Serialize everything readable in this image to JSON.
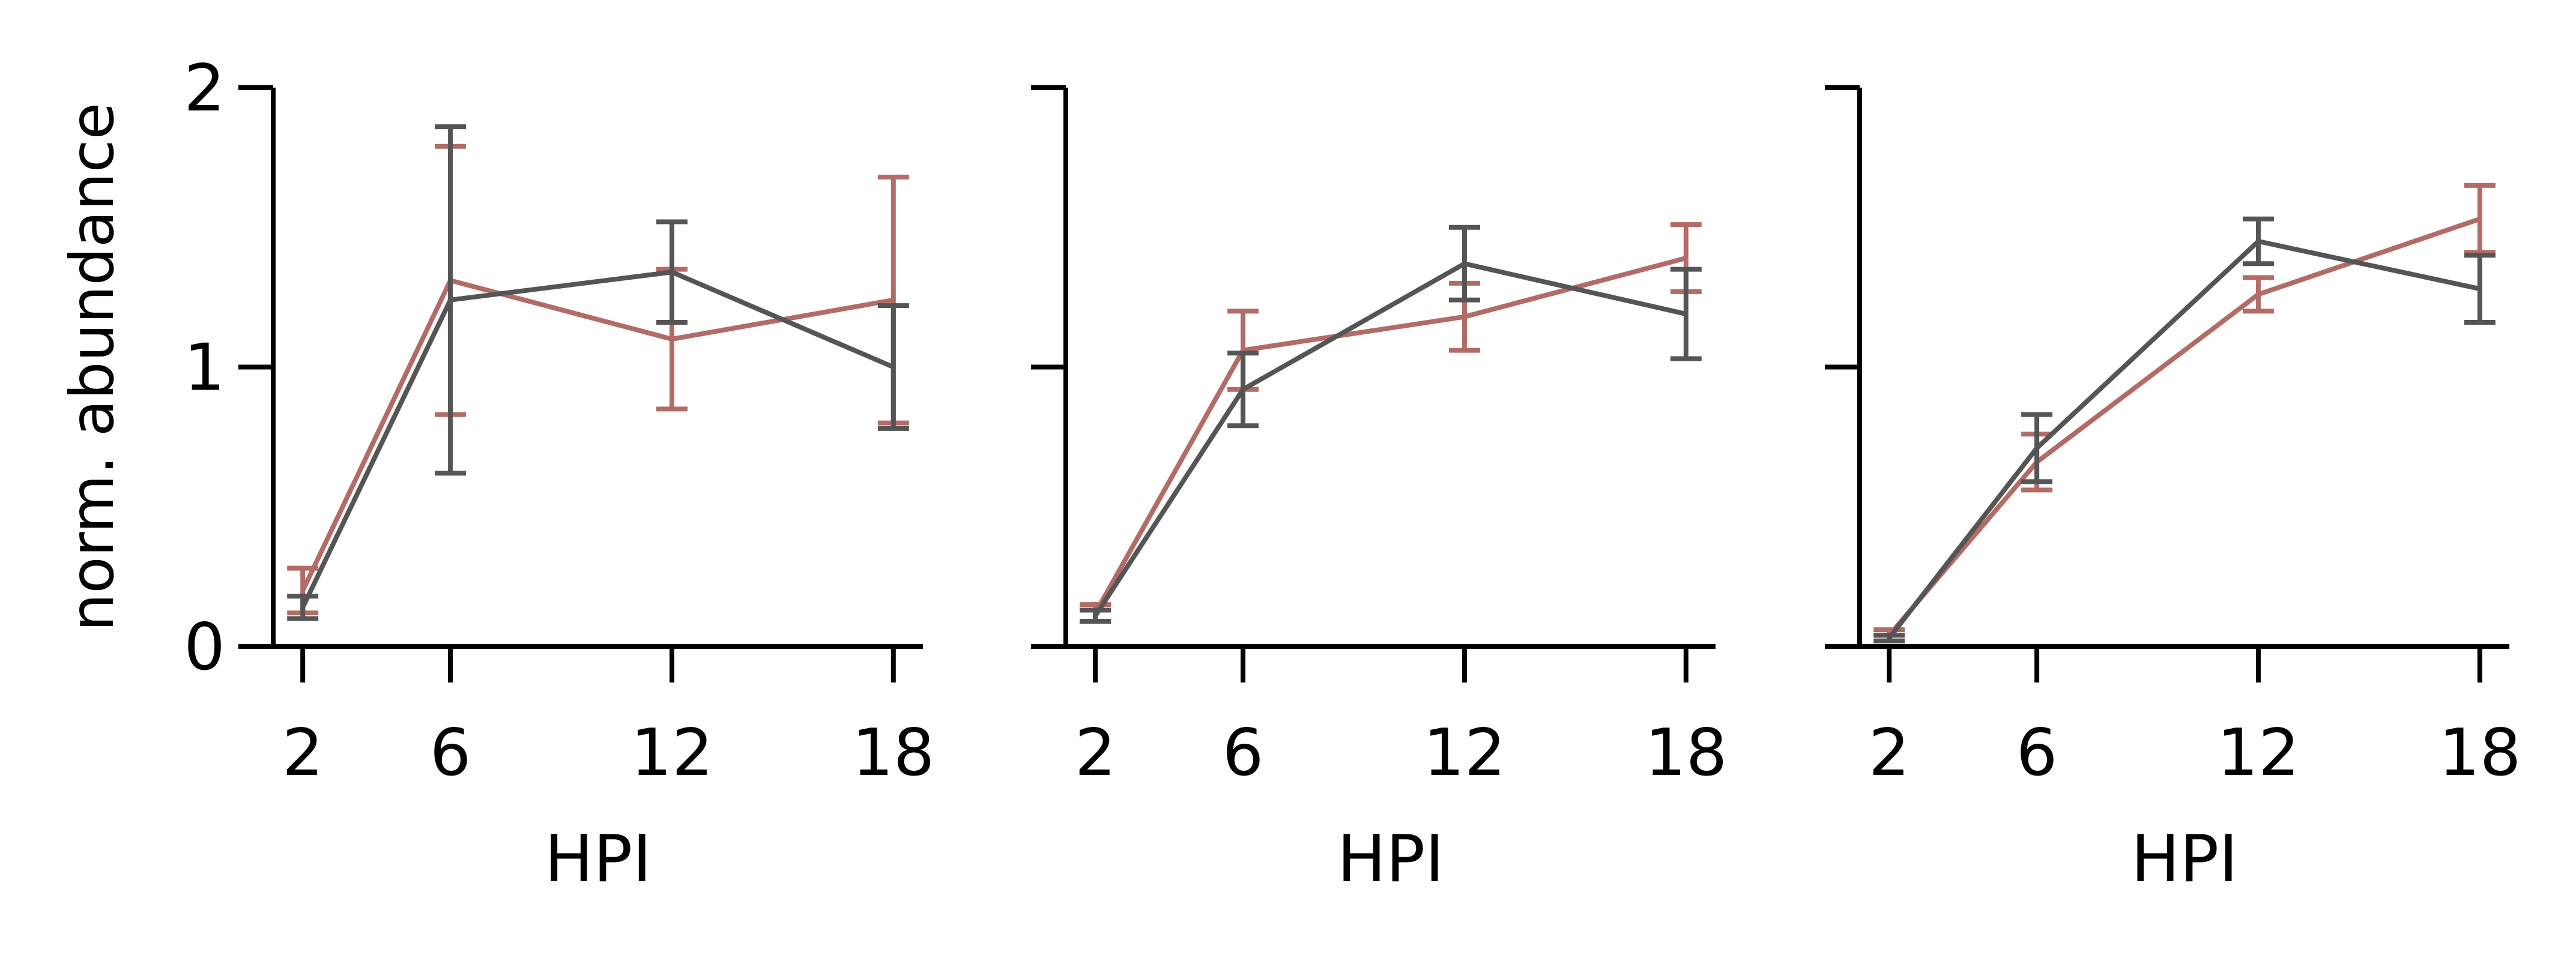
{
  "colors": {
    "series_a": "#b36b66",
    "series_b": "#555555",
    "axis": "#000000"
  },
  "chart_data": [
    {
      "type": "line",
      "panel": 1,
      "xlabel": "HPI",
      "ylabel": "norm. abundance",
      "xticks": [
        2,
        6,
        12,
        18
      ],
      "yticks": [
        0,
        1,
        2
      ],
      "ylim": [
        0,
        2
      ],
      "xlim": [
        1.2,
        18.8
      ],
      "error_bars": true,
      "series": [
        {
          "color": "#b36b66",
          "x": [
            2,
            6,
            12,
            18
          ],
          "y": [
            0.2,
            1.31,
            1.1,
            1.24
          ],
          "err": [
            0.08,
            0.48,
            0.25,
            0.44
          ]
        },
        {
          "color": "#555555",
          "x": [
            2,
            6,
            12,
            18
          ],
          "y": [
            0.14,
            1.24,
            1.34,
            1.0
          ],
          "err": [
            0.04,
            0.62,
            0.18,
            0.22
          ]
        }
      ]
    },
    {
      "type": "line",
      "panel": 2,
      "xlabel": "HPI",
      "ylabel": "",
      "xticks": [
        2,
        6,
        12,
        18
      ],
      "yticks": [
        0,
        1,
        2
      ],
      "ylim": [
        0,
        2
      ],
      "xlim": [
        1.2,
        18.8
      ],
      "error_bars": true,
      "series": [
        {
          "color": "#b36b66",
          "x": [
            2,
            6,
            12,
            18
          ],
          "y": [
            0.12,
            1.06,
            1.18,
            1.39
          ],
          "err": [
            0.03,
            0.14,
            0.12,
            0.12
          ]
        },
        {
          "color": "#555555",
          "x": [
            2,
            6,
            12,
            18
          ],
          "y": [
            0.11,
            0.92,
            1.37,
            1.19
          ],
          "err": [
            0.02,
            0.13,
            0.13,
            0.16
          ]
        }
      ]
    },
    {
      "type": "line",
      "panel": 3,
      "xlabel": "HPI",
      "ylabel": "",
      "xticks": [
        2,
        6,
        12,
        18
      ],
      "yticks": [
        0,
        1,
        2
      ],
      "ylim": [
        0,
        2
      ],
      "xlim": [
        1.2,
        18.8
      ],
      "error_bars": true,
      "series": [
        {
          "color": "#b36b66",
          "x": [
            2,
            6,
            12,
            18
          ],
          "y": [
            0.04,
            0.66,
            1.26,
            1.53
          ],
          "err": [
            0.02,
            0.1,
            0.06,
            0.12
          ]
        },
        {
          "color": "#555555",
          "x": [
            2,
            6,
            12,
            18
          ],
          "y": [
            0.03,
            0.71,
            1.45,
            1.28
          ],
          "err": [
            0.01,
            0.12,
            0.08,
            0.12
          ]
        }
      ]
    }
  ]
}
